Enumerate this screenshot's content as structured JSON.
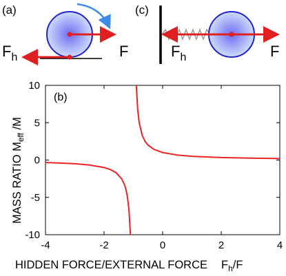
{
  "panels": {
    "a": {
      "label": "(a)",
      "left_force": {
        "main": "F",
        "sub": "h"
      },
      "right_force": "F"
    },
    "c": {
      "label": "(c)",
      "left_force": {
        "main": "F",
        "sub": "h"
      },
      "right_force": "F"
    }
  },
  "colors": {
    "ball_center": "#6f6cf2",
    "ball_edge": "#d7e8fb",
    "ball_outline": "#2222cc",
    "force_arrow": "#e02020",
    "rotation_arrow": "#3b8be8",
    "spring": "#9a9a9a",
    "curve": "#ee2222"
  },
  "chart_data": {
    "type": "line",
    "panel_label": "(b)",
    "xlabel": {
      "main": "HIDDEN FORCE/EXTERNAL FORCE",
      "ratio_main": "F",
      "ratio_sub": "h",
      "ratio_tail": "/F"
    },
    "ylabel": {
      "main": "MASS RATIO  M",
      "sub": "eff",
      "tail": " /M"
    },
    "xlim": [
      -4,
      4
    ],
    "ylim": [
      -10,
      10
    ],
    "xticks": [
      -4,
      -2,
      0,
      2,
      4
    ],
    "yticks": [
      -10,
      -5,
      0,
      5,
      10
    ],
    "series": [
      {
        "x": [
          -4.0,
          -3.5,
          -3.0,
          -2.5,
          -2.0,
          -1.8,
          -1.6,
          -1.4,
          -1.3,
          -1.25,
          -1.2,
          -1.15,
          -1.1,
          -1.08
        ],
        "y": [
          -0.33,
          -0.4,
          -0.5,
          -0.67,
          -1.0,
          -1.25,
          -1.67,
          -2.5,
          -3.33,
          -4.0,
          -5.0,
          -6.67,
          -10.0,
          -12.5
        ]
      },
      {
        "x": [
          -0.92,
          -0.9,
          -0.85,
          -0.8,
          -0.7,
          -0.6,
          -0.5,
          -0.3,
          0.0,
          0.5,
          1.0,
          2.0,
          3.0,
          4.0
        ],
        "y": [
          12.5,
          10.0,
          6.67,
          5.0,
          3.33,
          2.5,
          2.0,
          1.43,
          1.0,
          0.67,
          0.5,
          0.33,
          0.25,
          0.2
        ]
      }
    ],
    "grid": false
  }
}
